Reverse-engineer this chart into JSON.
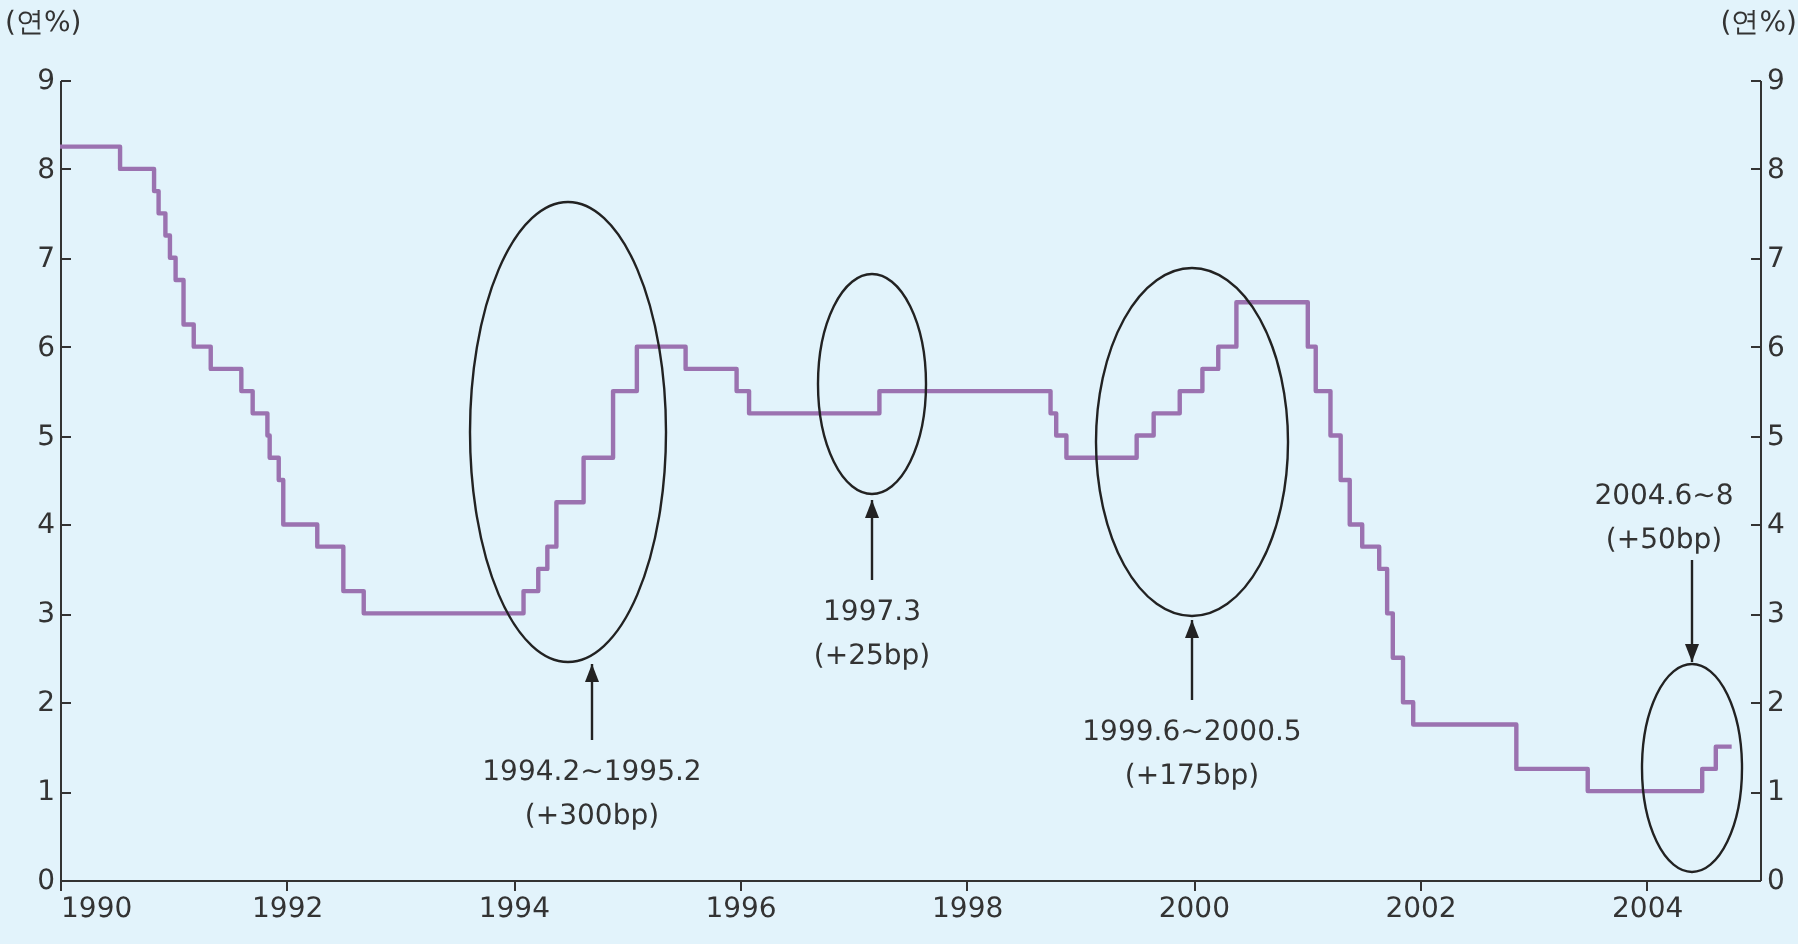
{
  "chart_data": {
    "type": "step",
    "x": [
      1990.0,
      1990.53,
      1990.83,
      1990.87,
      1990.93,
      1990.97,
      1991.02,
      1991.09,
      1991.18,
      1991.33,
      1991.6,
      1991.7,
      1991.83,
      1991.85,
      1991.93,
      1991.97,
      1992.27,
      1992.5,
      1992.68,
      1994.09,
      1994.22,
      1994.3,
      1994.38,
      1994.62,
      1994.88,
      1995.09,
      1995.52,
      1995.97,
      1996.08,
      1997.23,
      1998.74,
      1998.79,
      1998.88,
      1999.5,
      1999.65,
      1999.88,
      2000.08,
      2000.22,
      2000.38,
      2001.01,
      2001.08,
      2001.21,
      2001.3,
      2001.38,
      2001.49,
      2001.64,
      2001.71,
      2001.76,
      2001.85,
      2001.94,
      2002.85,
      2003.48,
      2004.49,
      2004.61,
      2004.75
    ],
    "series": [
      {
        "color": "#9b72b0",
        "values": [
          8.25,
          8.0,
          7.75,
          7.5,
          7.25,
          7.0,
          6.75,
          6.25,
          6.0,
          5.75,
          5.5,
          5.25,
          5.0,
          4.75,
          4.5,
          4.0,
          3.75,
          3.25,
          3.0,
          3.25,
          3.5,
          3.75,
          4.25,
          4.75,
          5.5,
          6.0,
          5.75,
          5.5,
          5.25,
          5.5,
          5.25,
          5.0,
          4.75,
          5.0,
          5.25,
          5.5,
          5.75,
          6.0,
          6.5,
          6.0,
          5.5,
          5.0,
          4.5,
          4.0,
          3.75,
          3.5,
          3.0,
          2.5,
          2.0,
          1.75,
          1.25,
          1.0,
          1.25,
          1.5,
          1.5
        ]
      }
    ],
    "ylabel": "(연%)",
    "y2label": "(연%)",
    "xlim": [
      1990,
      2005
    ],
    "xticks": [
      1990,
      1992,
      1994,
      1996,
      1998,
      2000,
      2002,
      2004
    ],
    "ylim": [
      0,
      9
    ],
    "yticks": [
      0,
      1,
      2,
      3,
      4,
      5,
      6,
      7,
      8,
      9
    ],
    "y2lim": [
      0,
      9
    ],
    "y2ticks": [
      0,
      1,
      2,
      3,
      4,
      5,
      6,
      7,
      8,
      9
    ],
    "annotations": [
      "1994.2~1995.2\n(+300bp)",
      "1997.3\n(+25bp)",
      "1999.6~2000.5\n(+175bp)",
      "2004.6~8\n(+50bp)"
    ]
  }
}
